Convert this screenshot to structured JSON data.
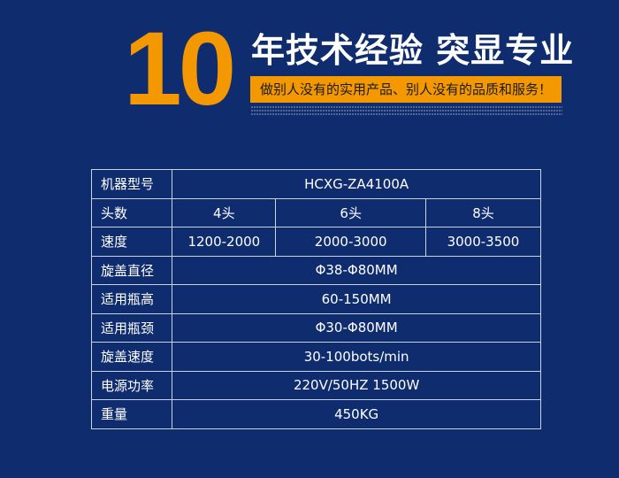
{
  "banner": {
    "number": "10",
    "headline": "年技术经验 突显专业",
    "slogan": "做别人没有的实用产品、别人没有的品质和服务！",
    "accent_color": "#f39800",
    "background_color": "#0f2d6e"
  },
  "spec_table": {
    "rows": [
      {
        "label": "机器型号",
        "values": [
          "HCXG-ZA4100A"
        ]
      },
      {
        "label": "头数",
        "values": [
          "4头",
          "6头",
          "8头"
        ]
      },
      {
        "label": "速度",
        "values": [
          "1200-2000",
          "2000-3000",
          "3000-3500"
        ]
      },
      {
        "label": "旋盖直径",
        "values": [
          "Φ38-Φ80MM"
        ]
      },
      {
        "label": "适用瓶高",
        "values": [
          "60-150MM"
        ]
      },
      {
        "label": "适用瓶颈",
        "values": [
          "Φ30-Φ80MM"
        ]
      },
      {
        "label": "旋盖速度",
        "values": [
          "30-100bots/min"
        ]
      },
      {
        "label": "电源功率",
        "values": [
          "220V/50HZ  1500W"
        ]
      },
      {
        "label": "重量",
        "values": [
          "450KG"
        ]
      }
    ]
  }
}
